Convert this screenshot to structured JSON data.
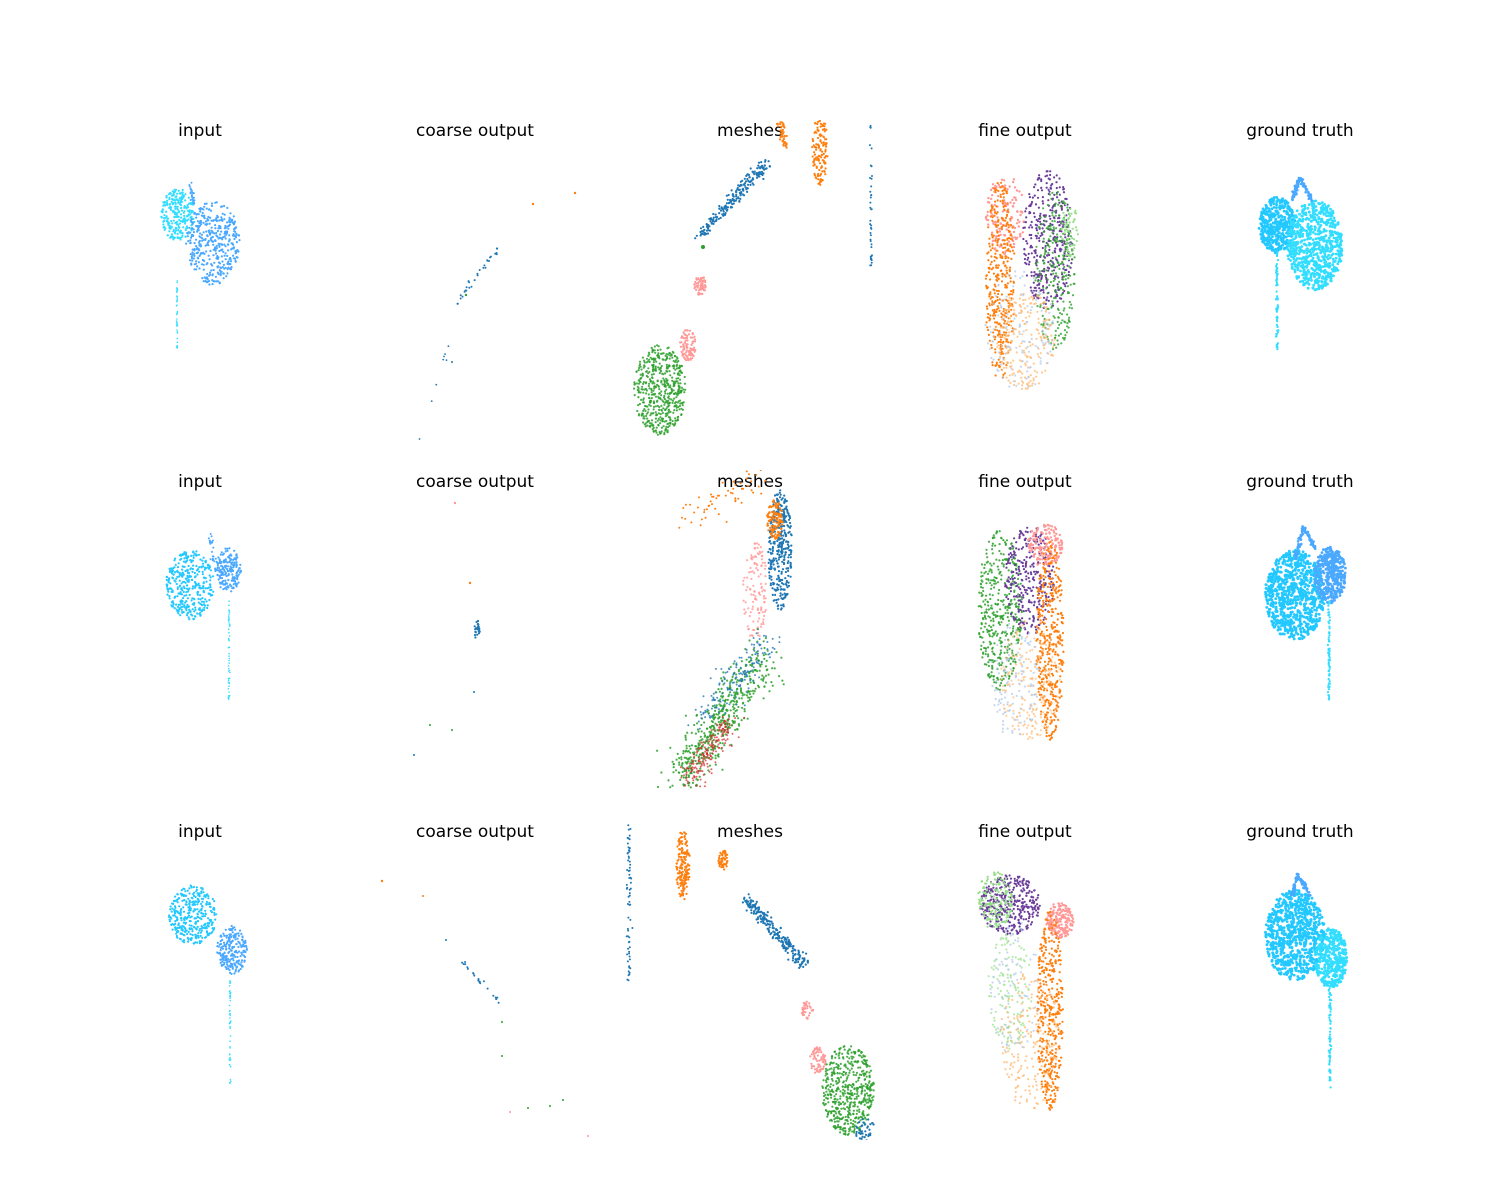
{
  "figure": {
    "rows": [
      {
        "panels": [
          {
            "title": "input",
            "kind": "input"
          },
          {
            "title": "coarse output",
            "kind": "coarse"
          },
          {
            "title": "meshes",
            "kind": "meshes"
          },
          {
            "title": "fine output",
            "kind": "fine"
          },
          {
            "title": "ground truth",
            "kind": "gt"
          }
        ]
      },
      {
        "panels": [
          {
            "title": "input",
            "kind": "input"
          },
          {
            "title": "coarse output",
            "kind": "coarse"
          },
          {
            "title": "meshes",
            "kind": "meshes"
          },
          {
            "title": "fine output",
            "kind": "fine"
          },
          {
            "title": "ground truth",
            "kind": "gt"
          }
        ]
      },
      {
        "panels": [
          {
            "title": "input",
            "kind": "input"
          },
          {
            "title": "coarse output",
            "kind": "coarse"
          },
          {
            "title": "meshes",
            "kind": "meshes"
          },
          {
            "title": "fine output",
            "kind": "fine"
          },
          {
            "title": "ground truth",
            "kind": "gt"
          }
        ]
      }
    ],
    "colors": {
      "cyan_light": "#33ddff",
      "cyan_mid": "#22c8ff",
      "blue_mid": "#4aa8ff",
      "steel_blue": "#1f77b4",
      "orange": "#ff7f0e",
      "green": "#2ca02c",
      "light_green": "#98df8a",
      "pink": "#ff9896",
      "red": "#d62728",
      "purple": "#6a3d9a",
      "light_blue": "#aec7e8",
      "light_orange": "#ffbb78"
    }
  }
}
